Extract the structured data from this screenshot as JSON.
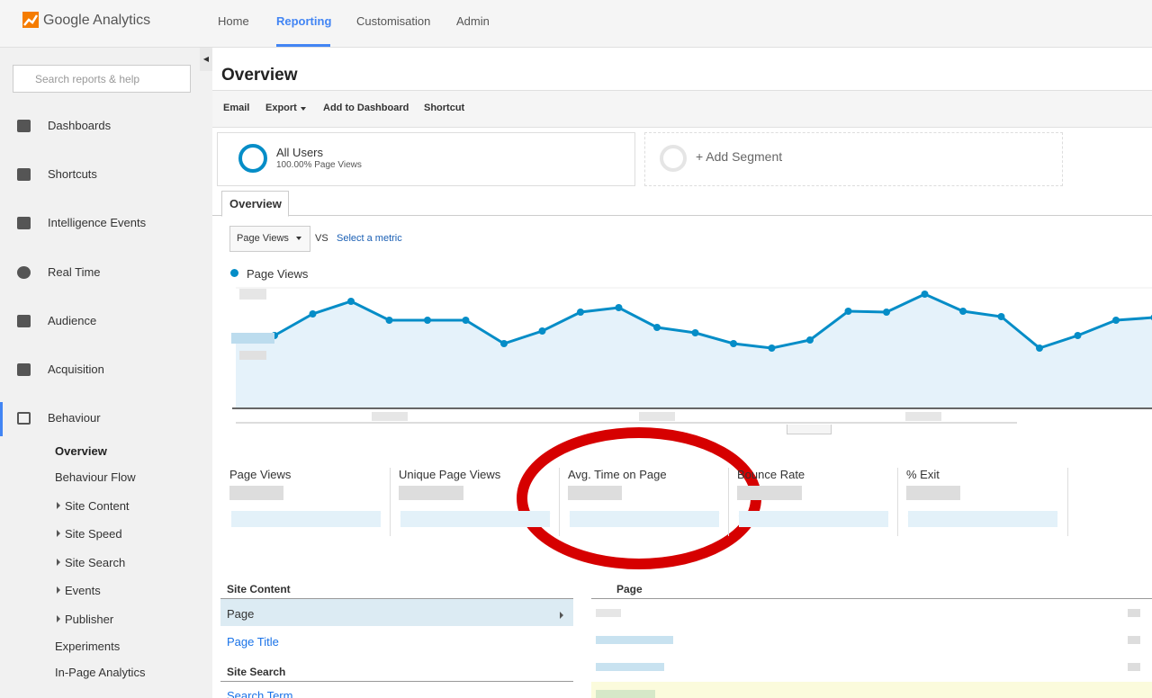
{
  "header": {
    "logo": "Google Analytics",
    "nav": [
      "Home",
      "Reporting",
      "Customisation",
      "Admin"
    ]
  },
  "sidebar": {
    "search_placeholder": "Search reports & help",
    "items": [
      "Dashboards",
      "Shortcuts",
      "Intelligence Events",
      "Real Time",
      "Audience",
      "Acquisition",
      "Behaviour"
    ],
    "sub_items": [
      "Overview",
      "Behaviour Flow",
      "Site Content",
      "Site Speed",
      "Site Search",
      "Events",
      "Publisher",
      "Experiments",
      "In-Page Analytics"
    ]
  },
  "main": {
    "title": "Overview",
    "actions": [
      "Email",
      "Export",
      "Add to Dashboard",
      "Shortcut"
    ],
    "segment": {
      "name": "All Users",
      "detail": "100.00% Page Views",
      "add": "+ Add Segment"
    },
    "tab": "Overview",
    "metric_select": "Page Views",
    "vs": "VS",
    "select_metric": "Select a metric",
    "legend": "Page Views",
    "chart": {
      "type": "line",
      "color": "#058dc7",
      "ylim": [
        0,
        133
      ],
      "values": [
        80,
        104,
        118,
        97,
        97,
        97,
        71,
        85,
        106,
        111,
        89,
        83,
        71,
        66,
        75,
        107,
        106,
        126,
        107,
        101,
        66,
        80,
        97,
        100
      ]
    },
    "metrics": [
      "Page Views",
      "Unique Page Views",
      "Avg. Time on Page",
      "Bounce Rate",
      "% Exit"
    ],
    "site_content": {
      "heading": "Site Content",
      "rows": [
        "Page",
        "Page Title"
      ]
    },
    "site_search": {
      "heading": "Site Search",
      "rows": [
        "Search Term"
      ]
    },
    "table_header": "Page"
  }
}
